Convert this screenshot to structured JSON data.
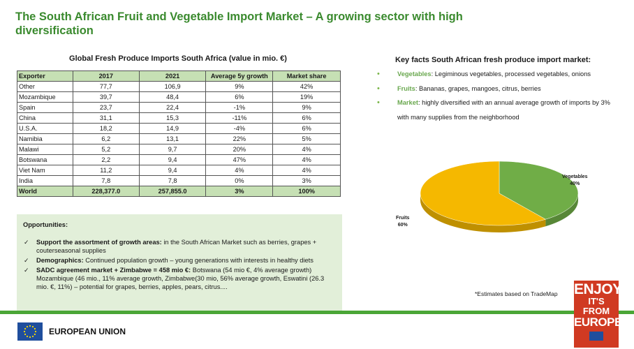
{
  "title": "The South African Fruit and Vegetable Import Market – A growing sector with high diversification",
  "table": {
    "title": "Global Fresh Produce Imports South Africa (value in mio. €)",
    "headers": [
      "Exporter",
      "2017",
      "2021",
      "Average 5y growth",
      "Market share"
    ],
    "rows": [
      [
        "Other",
        "77,7",
        "106,9",
        "9%",
        "42%"
      ],
      [
        "Mozambique",
        "39,7",
        "48,4",
        "6%",
        "19%"
      ],
      [
        "Spain",
        "23,7",
        "22,4",
        "-1%",
        "9%"
      ],
      [
        "China",
        "31,1",
        "15,3",
        "-11%",
        "6%"
      ],
      [
        "U.S.A.",
        "18,2",
        "14,9",
        "-4%",
        "6%"
      ],
      [
        "Namibia",
        "6,2",
        "13,1",
        "22%",
        "5%"
      ],
      [
        "Malawi",
        "5,2",
        "9,7",
        "20%",
        "4%"
      ],
      [
        "Botswana",
        "2,2",
        "9,4",
        "47%",
        "4%"
      ],
      [
        "Viet Nam",
        "11,2",
        "9,4",
        "4%",
        "4%"
      ],
      [
        "India",
        "7,8",
        "7,8",
        "0%",
        "3%"
      ]
    ],
    "total": [
      "World",
      "228,377.0",
      "257,855.0",
      "3%",
      "100%"
    ]
  },
  "opportunities": {
    "heading": "Opportunities:",
    "items": [
      {
        "label": "Support the assortment of growth areas:",
        "text": " in the South African Market such as berries, grapes + couterseasonal supplies"
      },
      {
        "label": "Demographics:",
        "text": " Continued population growth – young generations with interests in healthy diets"
      },
      {
        "label": "SADC agreement market + Zimbabwe = 458 mio €:",
        "text": " Botswana (54 mio €, 4% average growth) Mozambique (46 mio., 11% average growth, Zimbabwe(30 mio, 56% average growth, Eswatini (26.3 mio. €, 11%) – potential for grapes, berries, apples, pears, citrus...."
      }
    ]
  },
  "key_facts": {
    "title": "Key facts South African fresh produce import market:",
    "items": [
      {
        "label": "Vegetables",
        "text": ": Legiminous vegetables, processed vegetables, onions"
      },
      {
        "label": "Fruits",
        "text": ": Bananas, grapes, mangoes, citrus, berries"
      },
      {
        "label": "Market",
        "text": ": highly diversified  with an annual average growth of imports by 3% with many supplies from the neighborhood"
      }
    ]
  },
  "chart_data": {
    "type": "pie",
    "slices": [
      {
        "name": "Fruits",
        "value": 60,
        "label": "60%",
        "color": "#f5b800"
      },
      {
        "name": "Vegetables",
        "value": 40,
        "label": "40%",
        "color": "#70ad47"
      }
    ]
  },
  "note": "*Estimates based on TradeMap",
  "footer": {
    "eu_label": "EUROPEAN UNION",
    "logo_line1": "ENJOY",
    "logo_line2": "IT'S FROM",
    "logo_line3": "EUROPE"
  },
  "colors": {
    "accent": "#3a8a2e",
    "header_fill": "#c6e0b4",
    "panel": "#e2efd9",
    "footer_line": "#4aa636"
  }
}
